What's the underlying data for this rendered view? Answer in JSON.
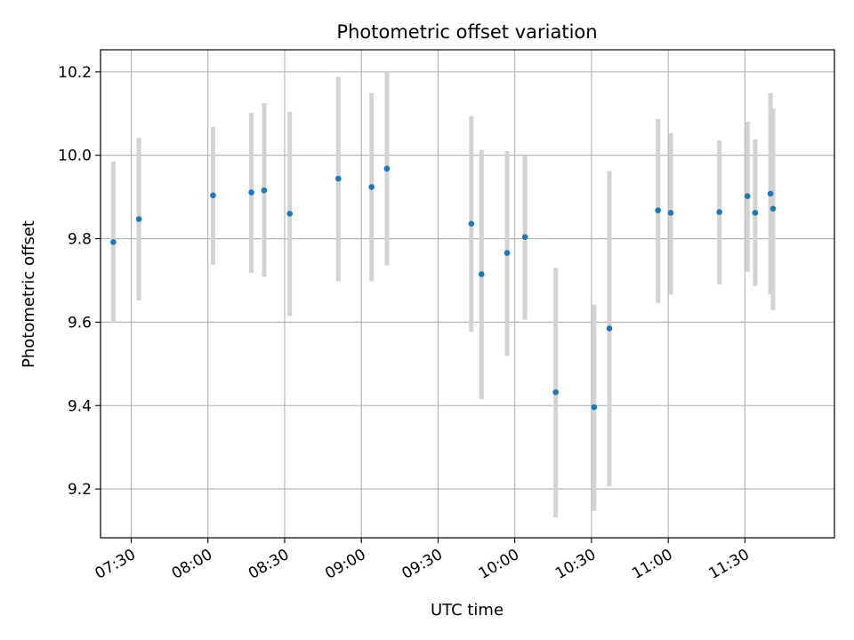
{
  "chart_data": {
    "type": "scatter",
    "title": "Photometric offset variation",
    "xlabel": "UTC time",
    "ylabel": "Photometric offset",
    "x_ticks": [
      "07:30",
      "08:00",
      "08:30",
      "09:00",
      "09:30",
      "10:00",
      "10:30",
      "11:00",
      "11:30"
    ],
    "y_ticks": [
      "9.2",
      "9.4",
      "9.6",
      "9.8",
      "10.0",
      "10.2"
    ],
    "xlim": [
      "07:18",
      "12:05"
    ],
    "ylim": [
      9.083,
      10.253
    ],
    "grid": true,
    "legend": "none",
    "colors": {
      "marker": "#1f77b4",
      "errorbar": "#d3d3d3",
      "grid": "#b0b0b0"
    },
    "points": [
      {
        "time": "07:23",
        "y": 9.792,
        "ylow": 9.598,
        "yhigh": 9.985
      },
      {
        "time": "07:33",
        "y": 9.847,
        "ylow": 9.652,
        "yhigh": 10.042
      },
      {
        "time": "08:02",
        "y": 9.904,
        "ylow": 9.738,
        "yhigh": 10.068
      },
      {
        "time": "08:17",
        "y": 9.911,
        "ylow": 9.718,
        "yhigh": 10.102
      },
      {
        "time": "08:22",
        "y": 9.916,
        "ylow": 9.709,
        "yhigh": 10.125
      },
      {
        "time": "08:32",
        "y": 9.86,
        "ylow": 9.615,
        "yhigh": 10.104
      },
      {
        "time": "08:51",
        "y": 9.944,
        "ylow": 9.698,
        "yhigh": 10.188
      },
      {
        "time": "09:04",
        "y": 9.924,
        "ylow": 9.698,
        "yhigh": 10.149
      },
      {
        "time": "09:10",
        "y": 9.968,
        "ylow": 9.736,
        "yhigh": 10.199
      },
      {
        "time": "09:43",
        "y": 9.836,
        "ylow": 9.577,
        "yhigh": 10.094
      },
      {
        "time": "09:47",
        "y": 9.715,
        "ylow": 9.415,
        "yhigh": 10.013
      },
      {
        "time": "09:57",
        "y": 9.766,
        "ylow": 9.519,
        "yhigh": 10.01
      },
      {
        "time": "10:04",
        "y": 9.804,
        "ylow": 9.606,
        "yhigh": 10.0
      },
      {
        "time": "10:16",
        "y": 9.432,
        "ylow": 9.132,
        "yhigh": 9.73
      },
      {
        "time": "10:31",
        "y": 9.396,
        "ylow": 9.147,
        "yhigh": 9.642
      },
      {
        "time": "10:37",
        "y": 9.585,
        "ylow": 9.206,
        "yhigh": 9.962
      },
      {
        "time": "10:56",
        "y": 9.868,
        "ylow": 9.646,
        "yhigh": 10.087
      },
      {
        "time": "11:01",
        "y": 9.862,
        "ylow": 9.666,
        "yhigh": 10.053
      },
      {
        "time": "11:20",
        "y": 9.864,
        "ylow": 9.69,
        "yhigh": 10.036
      },
      {
        "time": "11:31",
        "y": 9.902,
        "ylow": 9.721,
        "yhigh": 10.081
      },
      {
        "time": "11:34",
        "y": 9.862,
        "ylow": 9.687,
        "yhigh": 10.038
      },
      {
        "time": "11:40",
        "y": 9.908,
        "ylow": 9.667,
        "yhigh": 10.149
      },
      {
        "time": "11:41",
        "y": 9.872,
        "ylow": 9.629,
        "yhigh": 10.112
      }
    ]
  }
}
